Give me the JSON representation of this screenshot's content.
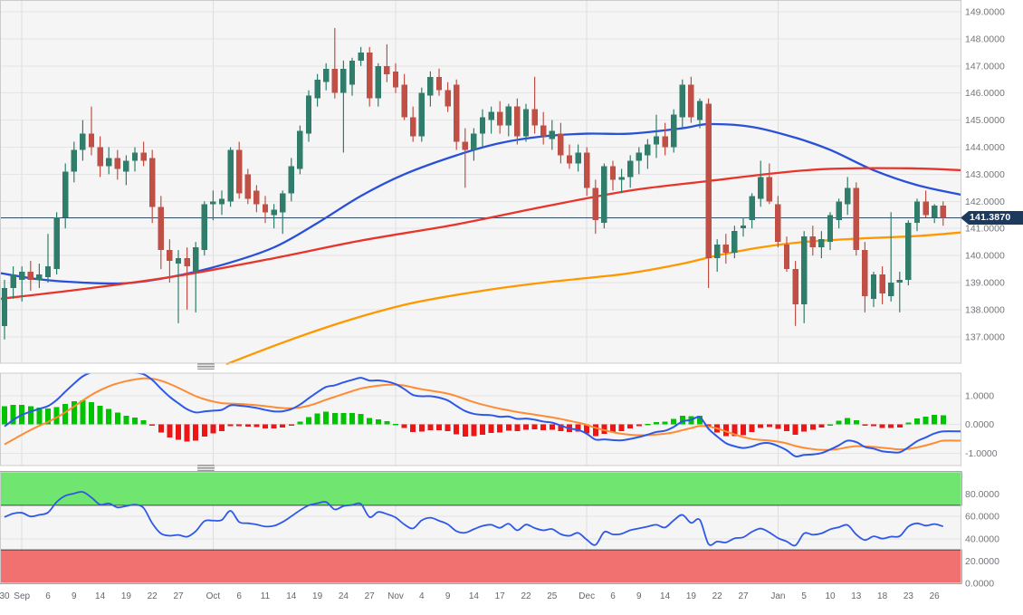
{
  "main": {
    "price_label": "141.3870"
  },
  "axes": {
    "price_labels": [
      "149.0000",
      "148.0000",
      "147.0000",
      "146.0000",
      "145.0000",
      "144.0000",
      "143.0000",
      "142.0000",
      "141.0000",
      "140.0000",
      "139.0000",
      "138.0000",
      "137.0000"
    ],
    "macd_labels": [
      "1.0000",
      "0.0000",
      "-1.0000"
    ],
    "rsi_labels": [
      "80.0000",
      "60.0000",
      "40.0000",
      "20.0000",
      "0.0000"
    ]
  },
  "chart_data": {
    "type": "candlestick",
    "title": "",
    "current_price": 141.387,
    "price_ylim": [
      136.0,
      149.43
    ],
    "grid": true,
    "month_grid_indices": [
      2,
      24,
      45,
      67,
      89
    ],
    "x_ticks": [
      [
        0,
        "30"
      ],
      [
        2,
        "Sep"
      ],
      [
        5,
        "6"
      ],
      [
        8,
        "9"
      ],
      [
        11,
        "14"
      ],
      [
        14,
        "19"
      ],
      [
        17,
        "22"
      ],
      [
        20,
        "27"
      ],
      [
        24,
        "Oct"
      ],
      [
        27,
        "6"
      ],
      [
        30,
        "11"
      ],
      [
        33,
        "14"
      ],
      [
        36,
        "19"
      ],
      [
        39,
        "24"
      ],
      [
        42,
        "27"
      ],
      [
        45,
        "Nov"
      ],
      [
        48,
        "4"
      ],
      [
        51,
        "9"
      ],
      [
        54,
        "14"
      ],
      [
        57,
        "17"
      ],
      [
        60,
        "22"
      ],
      [
        63,
        "25"
      ],
      [
        67,
        "Dec"
      ],
      [
        70,
        "6"
      ],
      [
        73,
        "9"
      ],
      [
        76,
        "14"
      ],
      [
        79,
        "19"
      ],
      [
        82,
        "22"
      ],
      [
        85,
        "27"
      ],
      [
        89,
        "Jan"
      ],
      [
        92,
        "5"
      ],
      [
        95,
        "10"
      ],
      [
        98,
        "13"
      ],
      [
        101,
        "18"
      ],
      [
        104,
        "23"
      ],
      [
        107,
        "26"
      ]
    ],
    "columns": [
      "date",
      "open",
      "high",
      "low",
      "close"
    ],
    "candles": [
      [
        "Aug 30",
        137.4,
        139.1,
        136.9,
        138.8
      ],
      [
        "Aug 31",
        138.8,
        139.6,
        138.4,
        139.3
      ],
      [
        "Sep 1",
        139.1,
        139.6,
        138.3,
        139.4
      ],
      [
        "Sep 2",
        139.4,
        139.8,
        138.7,
        139.1
      ],
      [
        "Sep 5",
        139.1,
        139.7,
        138.8,
        139.3
      ],
      [
        "Sep 6",
        139.2,
        140.8,
        139.0,
        139.6
      ],
      [
        "Sep 7",
        139.5,
        141.6,
        139.3,
        141.4
      ],
      [
        "Sep 8",
        141.4,
        143.4,
        141.0,
        143.1
      ],
      [
        "Sep 9",
        143.1,
        144.2,
        142.7,
        143.9
      ],
      [
        "Sep 12",
        143.9,
        145.0,
        143.5,
        144.5
      ],
      [
        "Sep 13",
        144.5,
        145.5,
        143.7,
        144.0
      ],
      [
        "Sep 14",
        144.0,
        144.4,
        142.9,
        143.3
      ],
      [
        "Sep 15",
        143.3,
        144.0,
        143.0,
        143.6
      ],
      [
        "Sep 16",
        143.6,
        143.9,
        142.8,
        143.2
      ],
      [
        "Sep 19",
        143.1,
        143.7,
        142.6,
        143.5
      ],
      [
        "Sep 20",
        143.5,
        144.0,
        143.1,
        143.8
      ],
      [
        "Sep 21",
        143.8,
        144.2,
        143.3,
        143.5
      ],
      [
        "Sep 22",
        143.6,
        143.9,
        141.2,
        141.8
      ],
      [
        "Sep 23",
        141.8,
        142.2,
        139.5,
        140.2
      ],
      [
        "Sep 26",
        140.2,
        140.6,
        139.0,
        139.8
      ],
      [
        "Sep 27",
        139.7,
        140.2,
        137.5,
        139.9
      ],
      [
        "Sep 28",
        139.9,
        140.3,
        138.0,
        139.6
      ],
      [
        "Sep 29",
        139.4,
        140.5,
        137.9,
        140.3
      ],
      [
        "Sep 30",
        140.2,
        142.0,
        140.0,
        141.9
      ],
      [
        "Oct 3",
        141.9,
        142.4,
        141.3,
        142.0
      ],
      [
        "Oct 4",
        141.9,
        142.4,
        141.5,
        142.1
      ],
      [
        "Oct 5",
        142.0,
        144.0,
        141.8,
        143.9
      ],
      [
        "Oct 6",
        143.9,
        144.2,
        142.1,
        142.3
      ],
      [
        "Oct 7",
        143.0,
        143.2,
        141.9,
        142.1
      ],
      [
        "Oct 10",
        142.4,
        142.6,
        141.6,
        141.9
      ],
      [
        "Oct 11",
        141.9,
        142.2,
        141.2,
        141.6
      ],
      [
        "Oct 12",
        141.5,
        141.9,
        141.0,
        141.7
      ],
      [
        "Oct 13",
        141.6,
        142.4,
        140.8,
        142.3
      ],
      [
        "Oct 14",
        142.3,
        143.6,
        142.0,
        143.3
      ],
      [
        "Oct 17",
        143.2,
        144.8,
        143.0,
        144.6
      ],
      [
        "Oct 18",
        144.5,
        146.1,
        144.2,
        145.9
      ],
      [
        "Oct 19",
        145.8,
        146.7,
        145.5,
        146.5
      ],
      [
        "Oct 20",
        146.4,
        147.1,
        146.1,
        146.9
      ],
      [
        "Oct 21",
        146.9,
        148.4,
        145.8,
        146.0
      ],
      [
        "Oct 24",
        146.0,
        147.2,
        143.8,
        146.9
      ],
      [
        "Oct 25",
        146.3,
        147.3,
        145.9,
        147.2
      ],
      [
        "Oct 26",
        147.2,
        147.7,
        147.0,
        147.5
      ],
      [
        "Oct 27",
        147.5,
        147.7,
        145.5,
        145.8
      ],
      [
        "Oct 28",
        145.8,
        147.1,
        145.5,
        147.0
      ],
      [
        "Oct 31",
        147.0,
        147.8,
        146.4,
        146.7
      ],
      [
        "Nov 1",
        146.8,
        147.1,
        146.0,
        146.2
      ],
      [
        "Nov 2",
        146.3,
        146.7,
        145.0,
        145.1
      ],
      [
        "Nov 3",
        145.1,
        145.5,
        144.2,
        144.4
      ],
      [
        "Nov 4",
        144.4,
        146.2,
        144.2,
        146.0
      ],
      [
        "Nov 7",
        145.9,
        146.8,
        145.5,
        146.6
      ],
      [
        "Nov 8",
        146.6,
        146.9,
        145.9,
        146.1
      ],
      [
        "Nov 9",
        146.1,
        146.4,
        145.3,
        145.5
      ],
      [
        "Nov 10",
        146.3,
        146.5,
        143.9,
        144.2
      ],
      [
        "Nov 11",
        144.2,
        144.7,
        142.5,
        143.9
      ],
      [
        "Nov 14",
        143.9,
        144.7,
        143.5,
        144.5
      ],
      [
        "Nov 15",
        144.5,
        145.4,
        144.0,
        145.1
      ],
      [
        "Nov 16",
        145.0,
        145.5,
        144.5,
        145.3
      ],
      [
        "Nov 17",
        145.3,
        145.7,
        144.5,
        144.8
      ],
      [
        "Nov 18",
        144.8,
        145.6,
        144.4,
        145.5
      ],
      [
        "Nov 21",
        145.5,
        145.8,
        144.1,
        144.4
      ],
      [
        "Nov 22",
        144.4,
        145.6,
        144.2,
        145.4
      ],
      [
        "Nov 23",
        145.4,
        146.6,
        144.5,
        144.8
      ],
      [
        "Nov 24",
        144.8,
        145.3,
        144.1,
        144.4
      ],
      [
        "Nov 25",
        144.3,
        145.0,
        143.9,
        144.6
      ],
      [
        "Nov 28",
        144.5,
        144.9,
        143.4,
        143.7
      ],
      [
        "Nov 29",
        143.7,
        144.1,
        143.2,
        143.4
      ],
      [
        "Nov 30",
        143.4,
        144.1,
        143.1,
        143.8
      ],
      [
        "Dec 1",
        143.8,
        144.0,
        142.2,
        142.5
      ],
      [
        "Dec 2",
        142.5,
        142.8,
        140.8,
        141.3
      ],
      [
        "Dec 5",
        141.2,
        143.4,
        141.0,
        143.3
      ],
      [
        "Dec 6",
        143.3,
        143.5,
        142.4,
        142.8
      ],
      [
        "Dec 7",
        142.8,
        143.2,
        142.3,
        142.9
      ],
      [
        "Dec 8",
        142.9,
        143.7,
        142.5,
        143.5
      ],
      [
        "Dec 9",
        143.5,
        144.0,
        143.0,
        143.8
      ],
      [
        "Dec 12",
        143.7,
        144.3,
        143.2,
        144.1
      ],
      [
        "Dec 13",
        144.1,
        145.2,
        143.6,
        144.4
      ],
      [
        "Dec 14",
        144.4,
        144.9,
        143.7,
        144.0
      ],
      [
        "Dec 15",
        144.0,
        145.4,
        143.8,
        145.2
      ],
      [
        "Dec 16",
        145.1,
        146.5,
        144.7,
        146.3
      ],
      [
        "Dec 19",
        146.3,
        146.6,
        144.9,
        145.1
      ],
      [
        "Dec 20",
        145.0,
        145.8,
        144.7,
        145.7
      ],
      [
        "Dec 21",
        145.6,
        145.8,
        138.8,
        139.9
      ],
      [
        "Dec 22",
        139.9,
        140.6,
        139.4,
        140.4
      ],
      [
        "Dec 23",
        140.4,
        140.8,
        139.7,
        140.1
      ],
      [
        "Dec 26",
        140.1,
        141.1,
        139.9,
        140.9
      ],
      [
        "Dec 27",
        141.0,
        141.4,
        140.7,
        141.1
      ],
      [
        "Dec 28",
        141.3,
        142.3,
        141.0,
        142.2
      ],
      [
        "Dec 29",
        142.1,
        143.5,
        141.8,
        142.9
      ],
      [
        "Dec 30",
        142.9,
        143.4,
        141.9,
        142.0
      ],
      [
        "Jan 2",
        141.9,
        142.2,
        140.3,
        140.5
      ],
      [
        "Jan 3",
        140.4,
        140.7,
        139.4,
        139.5
      ],
      [
        "Jan 4",
        139.5,
        139.8,
        137.4,
        138.2
      ],
      [
        "Jan 5",
        138.2,
        140.9,
        137.5,
        140.7
      ],
      [
        "Jan 6",
        140.7,
        141.1,
        140.0,
        140.3
      ],
      [
        "Jan 9",
        140.3,
        140.9,
        139.9,
        140.6
      ],
      [
        "Jan 10",
        140.5,
        141.6,
        140.2,
        141.5
      ],
      [
        "Jan 11",
        141.3,
        142.1,
        141.0,
        142.0
      ],
      [
        "Jan 12",
        141.9,
        142.9,
        141.5,
        142.5
      ],
      [
        "Jan 13",
        142.5,
        142.7,
        140.0,
        140.2
      ],
      [
        "Jan 16",
        140.2,
        140.5,
        137.9,
        138.5
      ],
      [
        "Jan 17",
        138.4,
        139.4,
        138.1,
        139.3
      ],
      [
        "Jan 18",
        139.3,
        139.6,
        138.2,
        138.6
      ],
      [
        "Jan 19",
        138.5,
        141.6,
        138.3,
        139.0
      ],
      [
        "Jan 20",
        139.0,
        139.4,
        137.9,
        139.1
      ],
      [
        "Jan 23",
        139.1,
        141.3,
        138.9,
        141.2
      ],
      [
        "Jan 24",
        141.2,
        142.1,
        140.9,
        142.0
      ],
      [
        "Jan 25",
        142.0,
        142.4,
        141.4,
        141.5
      ],
      [
        "Jan 26",
        141.4,
        141.9,
        141.2,
        141.85
      ],
      [
        "Jan 27",
        141.85,
        142.0,
        141.1,
        141.387
      ]
    ],
    "warmup_closes": [
      139.8,
      139.4,
      139.0,
      138.5,
      138.0,
      137.4,
      136.8,
      136.2,
      135.6,
      135.1,
      134.7,
      134.4,
      134.2,
      134.1,
      134.0,
      134.0,
      134.1,
      134.4,
      134.7,
      135.1,
      135.6,
      136.2,
      136.9,
      137.6,
      138.2
    ],
    "overlays": {
      "ma_blue": {
        "name": "ma-blue-line",
        "color": "#2950d8",
        "points": [
          [
            -0.5,
            139.35
          ],
          [
            4,
            139.12
          ],
          [
            9,
            139.0
          ],
          [
            14,
            138.98
          ],
          [
            19,
            139.2
          ],
          [
            25,
            139.65
          ],
          [
            31,
            140.3
          ],
          [
            36,
            141.2
          ],
          [
            41,
            142.2
          ],
          [
            46,
            143.0
          ],
          [
            52,
            143.7
          ],
          [
            57,
            144.15
          ],
          [
            62,
            144.4
          ],
          [
            67,
            144.5
          ],
          [
            72,
            144.5
          ],
          [
            78,
            144.7
          ],
          [
            81,
            144.85
          ],
          [
            86,
            144.75
          ],
          [
            91,
            144.35
          ],
          [
            95,
            143.9
          ],
          [
            100,
            143.15
          ],
          [
            105,
            142.6
          ],
          [
            110,
            142.25
          ]
        ]
      },
      "ma_red": {
        "name": "ma-red-line",
        "color": "#e8342a",
        "points": [
          [
            -0.5,
            138.4
          ],
          [
            10,
            138.8
          ],
          [
            20,
            139.25
          ],
          [
            31,
            139.9
          ],
          [
            41,
            140.55
          ],
          [
            52,
            141.15
          ],
          [
            62,
            141.8
          ],
          [
            72,
            142.4
          ],
          [
            81,
            142.75
          ],
          [
            89,
            143.05
          ],
          [
            95,
            143.2
          ],
          [
            104,
            143.22
          ],
          [
            110,
            143.15
          ]
        ]
      },
      "ma_orange": {
        "name": "ma-orange-line",
        "color": "#ff9800",
        "points": [
          [
            25.6,
            136.0
          ],
          [
            33,
            136.9
          ],
          [
            40,
            137.65
          ],
          [
            47,
            138.25
          ],
          [
            55,
            138.7
          ],
          [
            62,
            139.0
          ],
          [
            68,
            139.2
          ],
          [
            72,
            139.35
          ],
          [
            78,
            139.7
          ],
          [
            82,
            140.0
          ],
          [
            87,
            140.3
          ],
          [
            92,
            140.5
          ],
          [
            98,
            140.62
          ],
          [
            105,
            140.72
          ],
          [
            110,
            140.85
          ]
        ]
      }
    },
    "indicators": {
      "macd": {
        "fast": 12,
        "slow": 26,
        "signal": 9,
        "line_color": "#2e58e8",
        "signal_color": "#ff8b33",
        "hist_up": "#00c400",
        "hist_down": "#ed1515"
      },
      "rsi": {
        "period": 14,
        "overbought": 70,
        "oversold": 30,
        "line_color": "#2e58e8",
        "band_up_color": "#70e670",
        "band_down_color": "#f17070"
      }
    },
    "colors": {
      "candle_up": "#2f7d6a",
      "candle_down": "#c05046",
      "plot_bg": "#f5f5f5",
      "grid": "#e4e4e4",
      "month_grid": "#dedede",
      "panel_border": "#cccccc",
      "axis_text": "#71757a",
      "price_line": "#2e4a66",
      "price_label_bg": "#1c3a5e"
    }
  }
}
